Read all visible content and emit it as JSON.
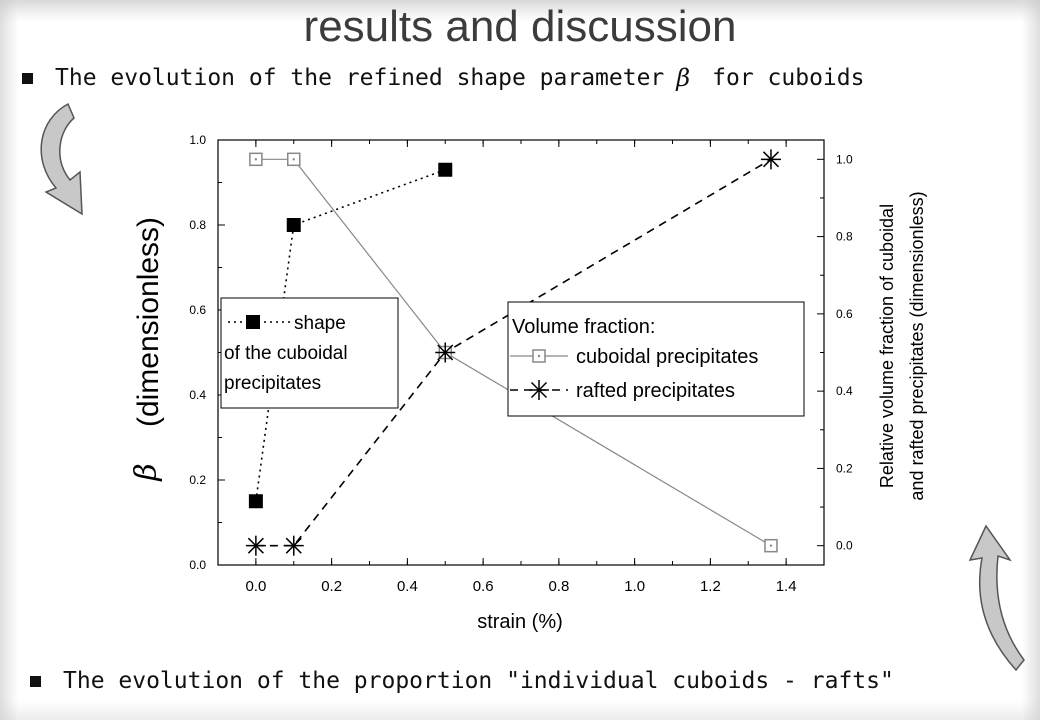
{
  "slide": {
    "title": "results and discussion",
    "bullet1_before": "The evolution of the refined shape parameter",
    "bullet1_symbol": "β",
    "bullet1_after": "for cuboids",
    "bullet2": "The evolution of the proportion \"individual cuboids - rafts\""
  },
  "chart_data": {
    "type": "line",
    "xlabel": "strain (%)",
    "ylabel_left_symbol": "β",
    "ylabel_left": "(dimensionless)",
    "ylabel_right_line1": "Relative volume fraction of cuboidal",
    "ylabel_right_line2": "and rafted precipitates (dimensionless)",
    "xlim": [
      -0.1,
      1.5
    ],
    "ylim_left": [
      0.0,
      1.0
    ],
    "ylim_right": [
      -0.05,
      1.05
    ],
    "x_ticks": [
      "0.0",
      "0.2",
      "0.4",
      "0.6",
      "0.8",
      "1.0",
      "1.2",
      "1.4"
    ],
    "y_left_ticks": [
      "0.0",
      "0.2",
      "0.4",
      "0.6",
      "0.8",
      "1.0"
    ],
    "y_right_ticks": [
      "0.0",
      "0.2",
      "0.4",
      "0.6",
      "0.8",
      "1.0"
    ],
    "grid": false,
    "series": [
      {
        "name": "shape of the cuboidal precipitates",
        "axis": "left",
        "marker": "filled-square",
        "line": "dotted",
        "color": "#000000",
        "x": [
          0.0,
          0.1,
          0.5
        ],
        "y": [
          0.15,
          0.8,
          0.93
        ]
      },
      {
        "name": "cuboidal precipitates",
        "axis": "right",
        "marker": "open-square-dot",
        "line": "solid",
        "color": "#888888",
        "x": [
          0.0,
          0.1,
          0.5,
          1.36
        ],
        "y": [
          1.0,
          1.0,
          0.5,
          0.0
        ]
      },
      {
        "name": "rafted precipitates",
        "axis": "right",
        "marker": "asterisk",
        "line": "dashed",
        "color": "#000000",
        "x": [
          0.0,
          0.1,
          0.5,
          1.36
        ],
        "y": [
          0.0,
          0.0,
          0.5,
          1.0
        ]
      }
    ],
    "legend_shape": {
      "line1": "shape",
      "line2": "of the cuboidal",
      "line3": "precipitates",
      "placement": "left"
    },
    "legend_volume": {
      "title": "Volume fraction:",
      "item1": "cuboidal precipitates",
      "item2": "rafted precipitates",
      "placement": "right"
    }
  }
}
